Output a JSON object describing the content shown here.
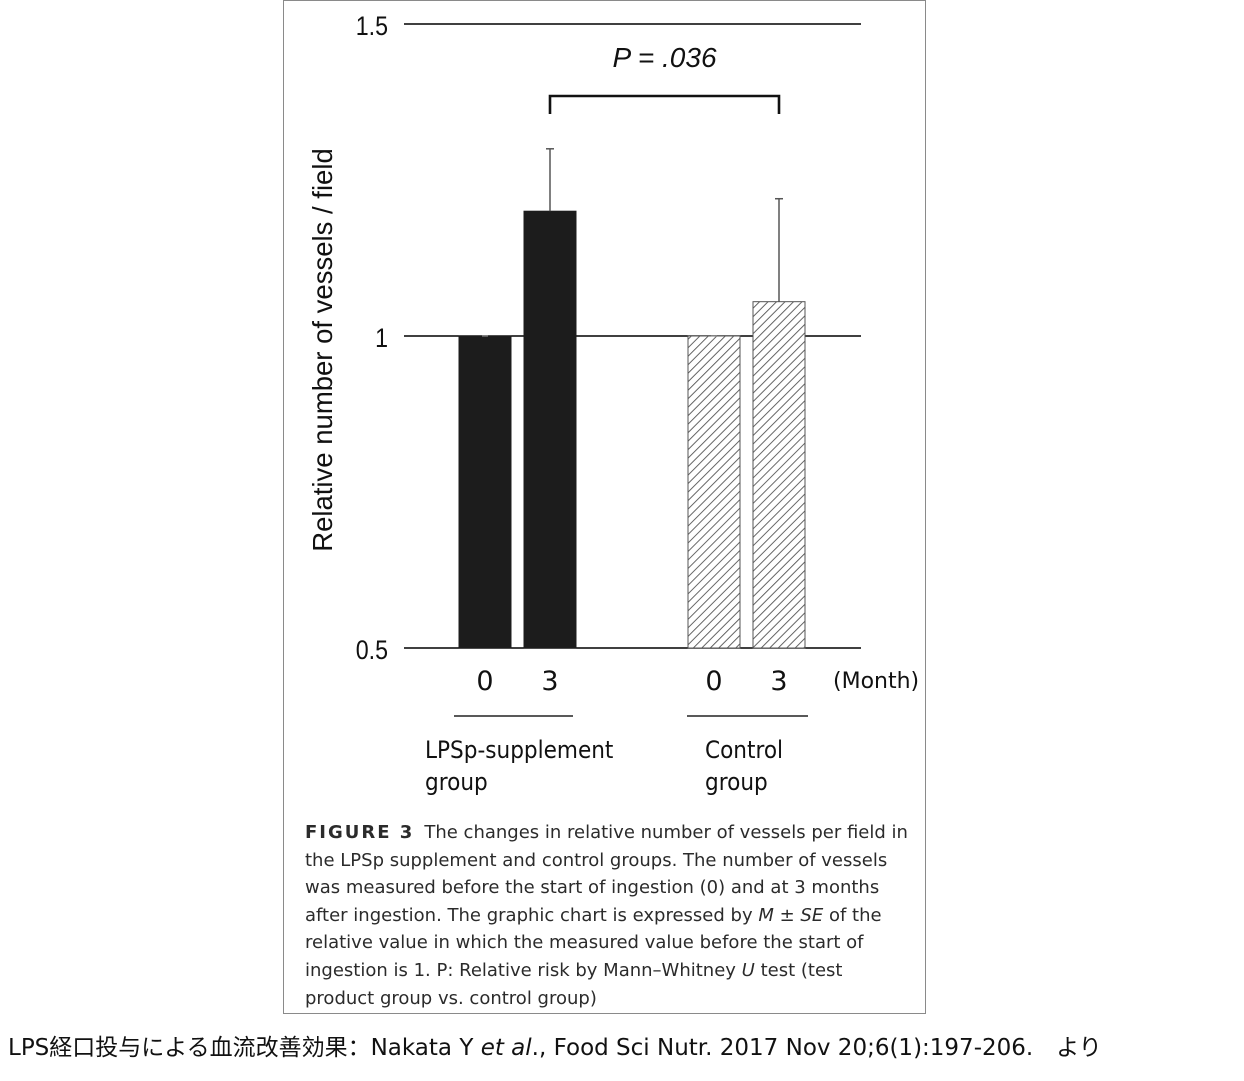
{
  "chart_data": {
    "type": "bar",
    "ylabel": "Relative number of vessels / field",
    "ylim": [
      0.5,
      1.5
    ],
    "yticks": [
      "0.5",
      "1",
      "1.5"
    ],
    "x_unit": "(Month)",
    "groups": [
      {
        "name": "LPSp-supplement group",
        "name_lines": [
          "LPSp-supplement",
          "group"
        ]
      },
      {
        "name": "Control group",
        "name_lines": [
          "Control",
          "group"
        ]
      }
    ],
    "bars": [
      {
        "group": "LPSp-supplement group",
        "month": "0",
        "value": 1.0,
        "error": 0.0,
        "fill": "solid"
      },
      {
        "group": "LPSp-supplement group",
        "month": "3",
        "value": 1.2,
        "error": 0.1,
        "fill": "solid"
      },
      {
        "group": "Control group",
        "month": "0",
        "value": 1.0,
        "error": 0.0,
        "fill": "hatched"
      },
      {
        "group": "Control group",
        "month": "3",
        "value": 1.055,
        "error": 0.165,
        "fill": "hatched"
      }
    ],
    "annotation": {
      "text": "P = .036",
      "between": [
        "LPSp-supplement group / 3",
        "Control group / 3"
      ]
    },
    "colors": {
      "solid": "#1c1c1c",
      "hatched": "#555555",
      "axis": "#000000"
    }
  },
  "caption": {
    "label": "FIGURE 3",
    "part1": "The changes in relative number of vessels per field in the LPSp supplement and control groups. The number of vessels was measured before the start of ingestion (0) and at 3 months after ingestion. The graphic chart is expressed by ",
    "m": "M",
    "pm": " ± ",
    "se": "SE",
    "part2": " of the relative value in which the measured value before the start of ingestion is 1. P: Relative risk by Mann–Whitney ",
    "u": "U",
    "part3": " test (test product group vs. control group)"
  },
  "source": {
    "prefix": "LPS経口投与による血流改善効果：Nakata Y ",
    "etal": "et al",
    "suffix": "., Food Sci Nutr. 2017 Nov 20;6(1):197-206.　より"
  }
}
